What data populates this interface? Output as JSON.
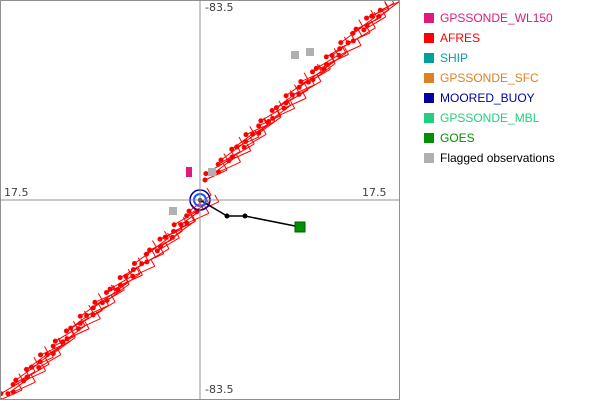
{
  "chart_data": {
    "type": "scatter",
    "axes": {
      "top_label": "-83.5",
      "bottom_label": "-83.5",
      "left_label": "17.5",
      "right_label": "17.5",
      "crosshair": "center",
      "frame": true
    },
    "legend": [
      {
        "name": "GPSSONDE_WL150",
        "color": "#e0197d",
        "text_color": "#e0197d"
      },
      {
        "name": "AFRES",
        "color": "#ff0000",
        "text_color": "#ff0000"
      },
      {
        "name": "SHIP",
        "color": "#00a0a0",
        "text_color": "#00a0a0"
      },
      {
        "name": "GPSSONDE_SFC",
        "color": "#e08020",
        "text_color": "#e08020"
      },
      {
        "name": "MOORED_BUOY",
        "color": "#0000a0",
        "text_color": "#0000a0"
      },
      {
        "name": "GPSSONDE_MBL",
        "color": "#20d080",
        "text_color": "#20d080"
      },
      {
        "name": "GOES",
        "color": "#009000",
        "text_color": "#009000"
      },
      {
        "name": "Flagged observations",
        "color": "#b0b0b0",
        "text_color": "#000000"
      }
    ],
    "storm_center": {
      "x": 0,
      "y": 0
    },
    "track": [
      [
        0,
        0
      ],
      [
        27,
        -16
      ],
      [
        45,
        -16
      ],
      [
        100,
        -27
      ]
    ],
    "goes_obs": {
      "x": 100,
      "y": -27
    },
    "wl150_obs": {
      "x": -11,
      "y": 28
    },
    "flagged_obs": [
      [
        12,
        28
      ],
      [
        -27,
        -11
      ],
      [
        95,
        145
      ],
      [
        110,
        148
      ]
    ],
    "afres_legs": [
      {
        "start": [
          -200,
          -200
        ],
        "end": [
          -5,
          -10
        ]
      },
      {
        "start": [
          5,
          20
        ],
        "end": [
          180,
          190
        ]
      }
    ]
  }
}
